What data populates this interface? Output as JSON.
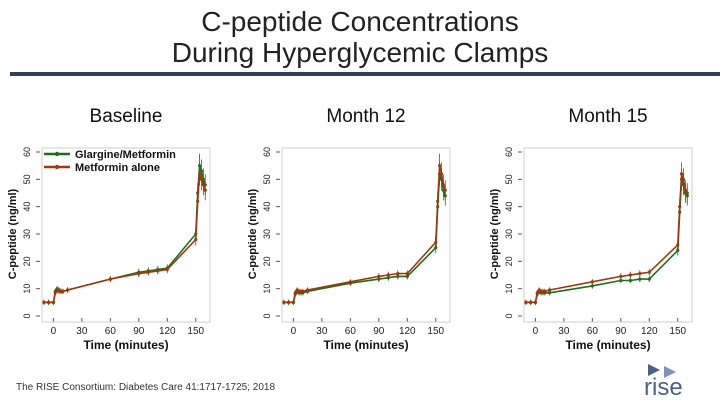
{
  "slide": {
    "title_line1": "C-peptide Concentrations",
    "title_line2": "During Hyperglycemic Clamps",
    "citation": "The RISE Consortium: Diabetes Care 41:1717-1725; 2018",
    "logo_text": "rise"
  },
  "colors": {
    "glargine": "#1f6e1f",
    "metformin": "#9b3a10",
    "rule": "#2f3e5b",
    "logo": "#4a6286"
  },
  "chart_data": [
    {
      "type": "line",
      "title": "Baseline",
      "xlabel": "Time (minutes)",
      "ylabel": "C-peptide (ng/ml)",
      "xlim": [
        -12,
        165
      ],
      "ylim": [
        0,
        60
      ],
      "xticks": [
        0,
        30,
        60,
        90,
        120,
        150
      ],
      "yticks": [
        0,
        10,
        20,
        30,
        40,
        50,
        60
      ],
      "legend": [
        "Glargine/Metformin",
        "Metformin alone"
      ],
      "x": [
        -10,
        -5,
        0,
        2,
        4,
        6,
        8,
        10,
        15,
        60,
        90,
        100,
        110,
        120,
        150,
        152,
        154,
        156,
        158,
        160
      ],
      "series": [
        {
          "name": "Glargine/Metformin",
          "values": [
            5,
            5,
            5,
            9,
            10,
            9.5,
            9,
            9,
            9.5,
            13.5,
            16,
            16.5,
            17,
            17.5,
            30,
            45,
            55,
            53,
            50,
            48
          ]
        },
        {
          "name": "Metformin alone",
          "values": [
            5,
            5,
            5,
            8.5,
            9.5,
            9,
            9,
            9,
            9.5,
            13.5,
            15.5,
            16,
            16.5,
            17,
            28,
            42,
            52,
            50,
            48,
            46
          ]
        }
      ]
    },
    {
      "type": "line",
      "title": "Month 12",
      "xlabel": "Time (minutes)",
      "ylabel": "C-peptide (ng/ml)",
      "xlim": [
        -12,
        165
      ],
      "ylim": [
        0,
        60
      ],
      "xticks": [
        0,
        30,
        60,
        90,
        120,
        150
      ],
      "yticks": [
        0,
        10,
        20,
        30,
        40,
        50,
        60
      ],
      "x": [
        -10,
        -5,
        0,
        2,
        4,
        6,
        8,
        10,
        15,
        60,
        90,
        100,
        110,
        120,
        150,
        152,
        154,
        156,
        158,
        160
      ],
      "series": [
        {
          "name": "Glargine/Metformin",
          "values": [
            5,
            5,
            5,
            8,
            9,
            8.5,
            8.5,
            8.5,
            9,
            12,
            13.5,
            14,
            14.5,
            14.5,
            25,
            40,
            52,
            50,
            46,
            44
          ]
        },
        {
          "name": "Metformin alone",
          "values": [
            5,
            5,
            5,
            8.5,
            9.5,
            9,
            9,
            9,
            9.5,
            12.5,
            14.5,
            15,
            15.5,
            15.5,
            27,
            42,
            55,
            52,
            48,
            46
          ]
        }
      ]
    },
    {
      "type": "line",
      "title": "Month 15",
      "xlabel": "Time (minutes)",
      "ylabel": "C-peptide (ng/ml)",
      "xlim": [
        -12,
        165
      ],
      "ylim": [
        0,
        60
      ],
      "xticks": [
        0,
        30,
        60,
        90,
        120,
        150
      ],
      "yticks": [
        0,
        10,
        20,
        30,
        40,
        50,
        60
      ],
      "x": [
        -10,
        -5,
        0,
        2,
        4,
        6,
        8,
        10,
        15,
        60,
        90,
        100,
        110,
        120,
        150,
        152,
        154,
        156,
        158,
        160
      ],
      "series": [
        {
          "name": "Glargine/Metformin",
          "values": [
            5,
            5,
            5,
            8,
            9,
            8.5,
            8.5,
            8.5,
            8.5,
            11,
            13,
            13,
            13.5,
            13.5,
            24,
            38,
            50,
            48,
            45,
            44
          ]
        },
        {
          "name": "Metformin alone",
          "values": [
            5,
            5,
            5,
            8.5,
            9.5,
            9,
            9,
            9,
            9.5,
            12.5,
            14.5,
            15,
            15.5,
            16,
            26,
            40,
            52,
            50,
            46,
            45
          ]
        }
      ]
    }
  ]
}
